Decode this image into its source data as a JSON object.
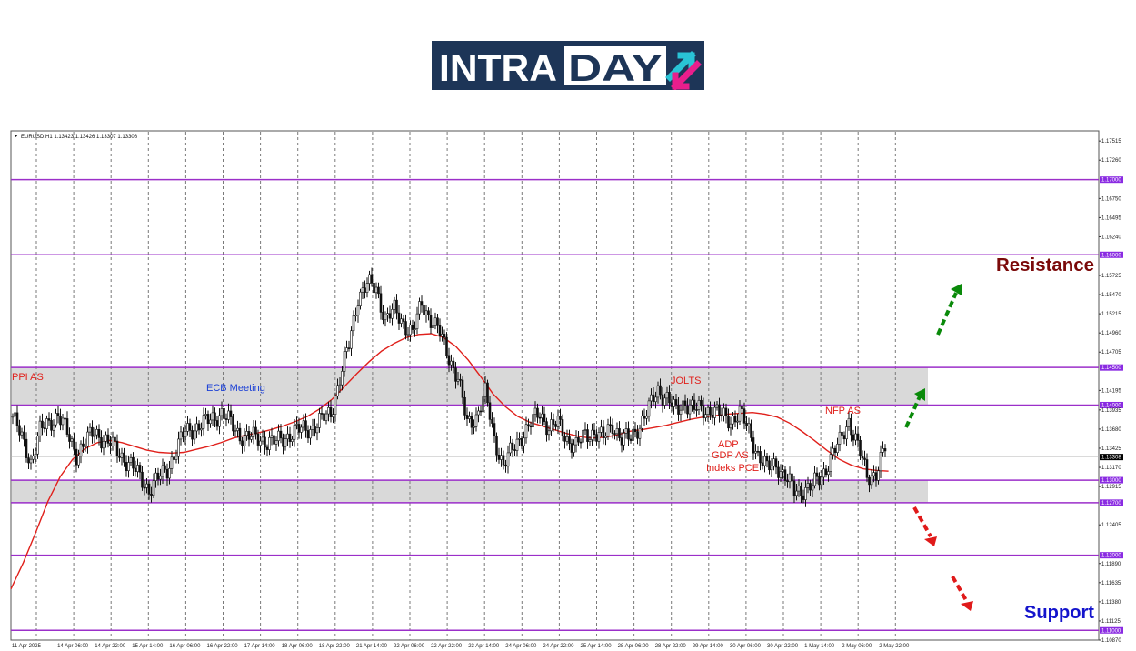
{
  "logo": {
    "text_left": "INTRA",
    "text_right": "DAY"
  },
  "colors": {
    "logo_bg": "#1d3557",
    "logo_arrow_up": "#29c3d6",
    "logo_arrow_down": "#e91e8c",
    "zone_fill": "#d9d9d9",
    "level_line": "#9b2fc9",
    "ma_line": "#e0201b",
    "candle": "#111111",
    "resistance_text": "#7b0a0a",
    "support_text": "#1414cc",
    "arrow_up": "#0a8a0a",
    "arrow_down": "#e01a1a",
    "event_red": "#e0201b",
    "event_blue": "#1a3fd6"
  },
  "header_text": "EURUSD,H1  1.13423 1.13426 1.13307 1.13308",
  "chart_data": {
    "type": "candlestick",
    "symbol": "EURUSD",
    "timeframe": "H1",
    "ohlc": {
      "open": 1.13423,
      "high": 1.13426,
      "low": 1.13307,
      "close": 1.13308
    },
    "current_price": "1.13308",
    "ylim": [
      1.1087,
      1.1765
    ],
    "y_ticks": [
      "1.17515",
      "1.17260",
      "1.16750",
      "1.16495",
      "1.16240",
      "1.15725",
      "1.15470",
      "1.15215",
      "1.14960",
      "1.14705",
      "1.14195",
      "1.13935",
      "1.13680",
      "1.13425",
      "1.13170",
      "1.12915",
      "1.12405",
      "1.11890",
      "1.11635",
      "1.11380",
      "1.11125",
      "1.10870"
    ],
    "x_ticks": [
      "11 Apr 2025",
      "14 Apr 06:00",
      "14 Apr 22:00",
      "15 Apr 14:00",
      "16 Apr 06:00",
      "16 Apr 22:00",
      "17 Apr 14:00",
      "18 Apr 06:00",
      "18 Apr 22:00",
      "21 Apr 14:00",
      "22 Apr 06:00",
      "22 Apr 22:00",
      "23 Apr 14:00",
      "24 Apr 06:00",
      "24 Apr 22:00",
      "25 Apr 14:00",
      "28 Apr 06:00",
      "28 Apr 22:00",
      "29 Apr 14:00",
      "30 Apr 06:00",
      "30 Apr 22:00",
      "1 May 14:00",
      "2 May 06:00",
      "2 May 22:00"
    ],
    "levels": [
      {
        "value": 1.17,
        "label": "1.17000"
      },
      {
        "value": 1.16,
        "label": "1.16000"
      },
      {
        "value": 1.145,
        "label": "1.14500"
      },
      {
        "value": 1.14,
        "label": "1.14000"
      },
      {
        "value": 1.13,
        "label": "1.13000"
      },
      {
        "value": 1.127,
        "label": "1.12700"
      },
      {
        "value": 1.12,
        "label": "1.12000"
      },
      {
        "value": 1.11,
        "label": "1.11000"
      }
    ],
    "zones": [
      {
        "from": 1.14,
        "to": 1.145
      },
      {
        "from": 1.127,
        "to": 1.13
      }
    ],
    "close_path": [
      [
        0,
        1.1385
      ],
      [
        2,
        1.1325
      ],
      [
        3,
        1.1365
      ],
      [
        5,
        1.1388
      ],
      [
        7,
        1.1335
      ],
      [
        9,
        1.1365
      ],
      [
        11,
        1.1345
      ],
      [
        13,
        1.132
      ],
      [
        15,
        1.1288
      ],
      [
        17,
        1.1315
      ],
      [
        19,
        1.1365
      ],
      [
        21,
        1.1375
      ],
      [
        23,
        1.139
      ],
      [
        25,
        1.136
      ],
      [
        27,
        1.1355
      ],
      [
        29,
        1.135
      ],
      [
        31,
        1.1365
      ],
      [
        33,
        1.137
      ],
      [
        35,
        1.139
      ],
      [
        37,
        1.148
      ],
      [
        38,
        1.1545
      ],
      [
        39,
        1.156
      ],
      [
        40,
        1.1555
      ],
      [
        41,
        1.1515
      ],
      [
        42,
        1.1525
      ],
      [
        43,
        1.151
      ],
      [
        44,
        1.1495
      ],
      [
        45,
        1.1535
      ],
      [
        46,
        1.1515
      ],
      [
        47,
        1.1495
      ],
      [
        48,
        1.1465
      ],
      [
        49,
        1.1435
      ],
      [
        50,
        1.1375
      ],
      [
        51,
        1.1385
      ],
      [
        52,
        1.1415
      ],
      [
        53,
        1.1355
      ],
      [
        54,
        1.132
      ],
      [
        55,
        1.134
      ],
      [
        56,
        1.136
      ],
      [
        57,
        1.1375
      ],
      [
        58,
        1.139
      ],
      [
        59,
        1.137
      ],
      [
        60,
        1.1375
      ],
      [
        61,
        1.1355
      ],
      [
        62,
        1.1345
      ],
      [
        63,
        1.136
      ],
      [
        64,
        1.1365
      ],
      [
        65,
        1.1355
      ],
      [
        66,
        1.1375
      ],
      [
        67,
        1.1355
      ],
      [
        68,
        1.1355
      ],
      [
        69,
        1.1375
      ],
      [
        70,
        1.1395
      ],
      [
        71,
        1.142
      ],
      [
        72,
        1.141
      ],
      [
        73,
        1.139
      ],
      [
        74,
        1.1405
      ],
      [
        75,
        1.1395
      ],
      [
        76,
        1.1392
      ],
      [
        77,
        1.1395
      ],
      [
        78,
        1.1385
      ],
      [
        79,
        1.138
      ],
      [
        80,
        1.139
      ],
      [
        81,
        1.1365
      ],
      [
        82,
        1.1335
      ],
      [
        83,
        1.1315
      ],
      [
        84,
        1.1322
      ],
      [
        85,
        1.1305
      ],
      [
        86,
        1.1285
      ],
      [
        87,
        1.1288
      ],
      [
        88,
        1.1292
      ],
      [
        89,
        1.1305
      ],
      [
        90,
        1.133
      ],
      [
        91,
        1.135
      ],
      [
        92,
        1.138
      ],
      [
        93,
        1.1345
      ],
      [
        94,
        1.1305
      ],
      [
        95,
        1.131
      ],
      [
        96,
        1.1342
      ]
    ],
    "ma_series": {
      "name": "",
      "points": [
        [
          0,
          1.1155
        ],
        [
          1,
          1.119
        ],
        [
          2,
          1.123
        ],
        [
          3,
          1.1272
        ],
        [
          4,
          1.1305
        ],
        [
          5,
          1.1328
        ],
        [
          6,
          1.1342
        ],
        [
          7,
          1.135
        ],
        [
          8,
          1.1353
        ],
        [
          9,
          1.135
        ],
        [
          10,
          1.1345
        ],
        [
          11,
          1.134
        ],
        [
          12,
          1.1337
        ],
        [
          13,
          1.1336
        ],
        [
          14,
          1.1337
        ],
        [
          15,
          1.1341
        ],
        [
          16,
          1.1345
        ],
        [
          17,
          1.135
        ],
        [
          18,
          1.1356
        ],
        [
          19,
          1.136
        ],
        [
          20,
          1.1363
        ],
        [
          21,
          1.1367
        ],
        [
          22,
          1.1372
        ],
        [
          23,
          1.1378
        ],
        [
          24,
          1.1385
        ],
        [
          25,
          1.1395
        ],
        [
          26,
          1.1408
        ],
        [
          27,
          1.1425
        ],
        [
          28,
          1.1442
        ],
        [
          29,
          1.1458
        ],
        [
          30,
          1.1472
        ],
        [
          31,
          1.1482
        ],
        [
          32,
          1.149
        ],
        [
          33,
          1.1494
        ],
        [
          34,
          1.1495
        ],
        [
          35,
          1.149
        ],
        [
          36,
          1.1478
        ],
        [
          37,
          1.146
        ],
        [
          38,
          1.1438
        ],
        [
          39,
          1.1415
        ],
        [
          40,
          1.1398
        ],
        [
          41,
          1.1385
        ],
        [
          42,
          1.1377
        ],
        [
          43,
          1.1372
        ],
        [
          44,
          1.1367
        ],
        [
          45,
          1.1362
        ],
        [
          46,
          1.1358
        ],
        [
          47,
          1.1356
        ],
        [
          48,
          1.1357
        ],
        [
          49,
          1.136
        ],
        [
          50,
          1.1365
        ],
        [
          51,
          1.1367
        ],
        [
          52,
          1.137
        ],
        [
          53,
          1.1373
        ],
        [
          54,
          1.1377
        ],
        [
          55,
          1.1381
        ],
        [
          56,
          1.1384
        ],
        [
          57,
          1.1386
        ],
        [
          58,
          1.1388
        ],
        [
          59,
          1.1389
        ],
        [
          60,
          1.139
        ],
        [
          61,
          1.1388
        ],
        [
          62,
          1.1384
        ],
        [
          63,
          1.1376
        ],
        [
          64,
          1.1365
        ],
        [
          65,
          1.1353
        ],
        [
          66,
          1.134
        ],
        [
          67,
          1.1328
        ],
        [
          68,
          1.132
        ],
        [
          69,
          1.1315
        ],
        [
          70,
          1.1313
        ],
        [
          71,
          1.1312
        ]
      ]
    },
    "events": [
      {
        "label": "PPI AS",
        "color": "red"
      },
      {
        "label": "ECB Meeting",
        "color": "blue"
      },
      {
        "label": "JOLTS",
        "color": "red"
      },
      {
        "label": "ADP",
        "color": "red"
      },
      {
        "label": "GDP AS",
        "color": "red"
      },
      {
        "label": "Indeks PCE",
        "color": "red"
      },
      {
        "label": "NFP AS",
        "color": "red"
      }
    ],
    "zone_labels": {
      "resistance": "Resistance",
      "support": "Support"
    },
    "grid": true
  }
}
